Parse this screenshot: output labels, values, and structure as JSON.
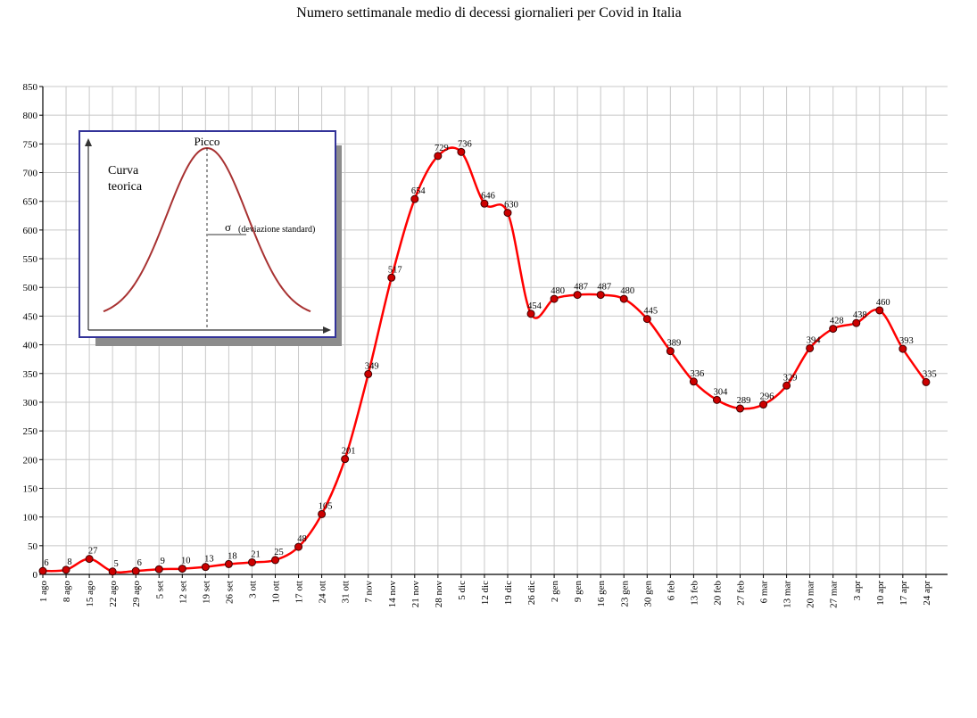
{
  "chart_data": {
    "type": "line",
    "title": "Numero settimanale medio di decessi giornalieri per Covid in Italia",
    "xlabel": "",
    "ylabel": "",
    "categories": [
      "1 ago",
      "8 ago",
      "15 ago",
      "22 ago",
      "29 ago",
      "5 set",
      "12 set",
      "19 set",
      "26 set",
      "3 ott",
      "10 ott",
      "17 ott",
      "24 ott",
      "31 ott",
      "7 nov",
      "14 nov",
      "21 nov",
      "28 nov",
      "5 dic",
      "12 dic",
      "19 dic",
      "26 dic",
      "2 gen",
      "9 gen",
      "16 gen",
      "23 gen",
      "30 gen",
      "6 feb",
      "13 feb",
      "20 feb",
      "27 feb",
      "6 mar",
      "13 mar",
      "20 mar",
      "27 mar",
      "3 apr",
      "10 apr",
      "17 apr",
      "24 apr"
    ],
    "values": [
      6,
      8,
      27,
      5,
      6,
      9,
      10,
      13,
      18,
      21,
      25,
      48,
      105,
      201,
      349,
      517,
      654,
      729,
      736,
      646,
      630,
      454,
      480,
      487,
      487,
      480,
      445,
      389,
      336,
      304,
      289,
      296,
      329,
      394,
      428,
      438,
      460,
      393,
      335
    ],
    "ylim": [
      0,
      850
    ],
    "yticks": [
      0,
      50,
      100,
      150,
      200,
      250,
      300,
      350,
      400,
      450,
      500,
      550,
      600,
      650,
      700,
      750,
      800,
      850
    ],
    "grid": true,
    "line_color": "#ff0000",
    "marker_color": "#cc0000"
  },
  "inset": {
    "title": "Curva teorica",
    "title_line1": "Curva",
    "title_line2": "teorica",
    "peak_label": "Picco",
    "sigma_symbol": "σ",
    "sigma_label": "(deviazione standard)",
    "curve_color": "#a83232",
    "border_color": "#333399"
  }
}
